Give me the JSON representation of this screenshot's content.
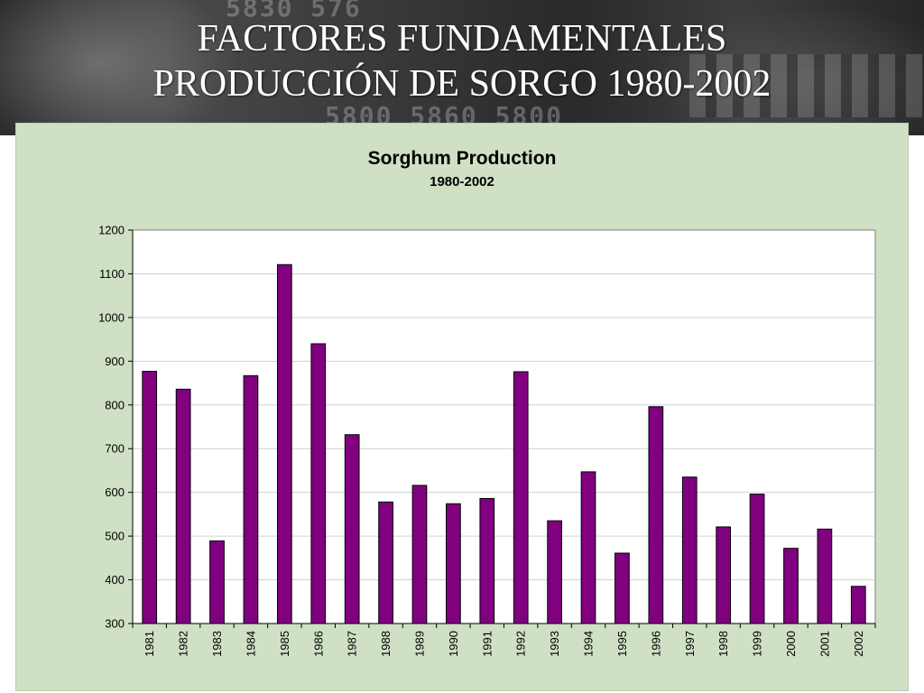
{
  "slide": {
    "title_line1": "FACTORES FUNDAMENTALES",
    "title_line2": "PRODUCCIÓN DE SORGO 1980-2002",
    "banner_ticker_1": "5830  576",
    "banner_ticker_2": "5800  5860  5800"
  },
  "colors": {
    "bar_fill": "#800080",
    "bar_stroke": "#000000",
    "panel_background": "#cfe0c4",
    "plot_background": "#ffffff",
    "gridline": "#d0d0d0"
  },
  "chart_data": {
    "type": "bar",
    "title": "Sorghum Production",
    "subtitle": "1980-2002",
    "xlabel": "",
    "ylabel": "",
    "ylim": [
      300,
      1200
    ],
    "yticks": [
      300,
      400,
      500,
      600,
      700,
      800,
      900,
      1000,
      1100,
      1200
    ],
    "grid": true,
    "legend": "none",
    "categories": [
      "1981",
      "1982",
      "1983",
      "1984",
      "1985",
      "1986",
      "1987",
      "1988",
      "1989",
      "1990",
      "1991",
      "1992",
      "1993",
      "1994",
      "1995",
      "1996",
      "1997",
      "1998",
      "1999",
      "2000",
      "2001",
      "2002"
    ],
    "values": [
      877,
      836,
      489,
      867,
      1121,
      940,
      732,
      578,
      616,
      574,
      586,
      876,
      535,
      647,
      461,
      796,
      635,
      521,
      596,
      472,
      516,
      385
    ]
  }
}
